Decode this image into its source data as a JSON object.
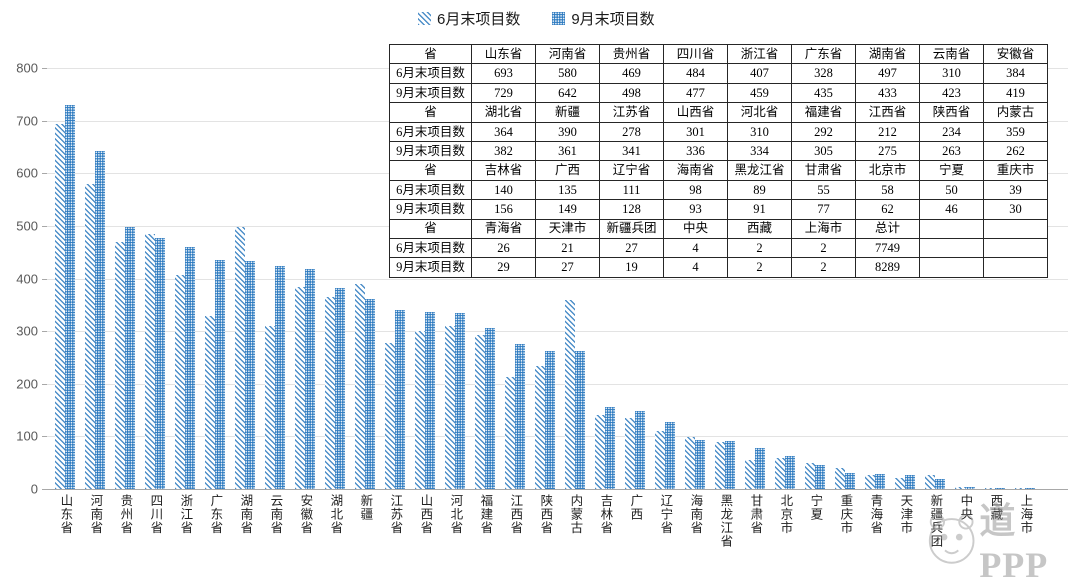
{
  "colors": {
    "bar_blue": "#2E7BC0",
    "hatch_blue": "#4E8FC9",
    "grid": "#E3E3E3",
    "axis": "#A8A8A8",
    "table_border": "#262626",
    "watermark_gray": "#8F8F8F"
  },
  "chart_data": {
    "type": "bar",
    "title": "",
    "xlabel": "",
    "ylabel": "",
    "ylim": [
      0,
      800
    ],
    "yticks": [
      0,
      100,
      200,
      300,
      400,
      500,
      600,
      700,
      800
    ],
    "grid": true,
    "legend_position": "top",
    "categories": [
      "山东省",
      "河南省",
      "贵州省",
      "四川省",
      "浙江省",
      "广东省",
      "湖南省",
      "云南省",
      "安徽省",
      "湖北省",
      "新疆",
      "江苏省",
      "山西省",
      "河北省",
      "福建省",
      "江西省",
      "陕西省",
      "内蒙古",
      "吉林省",
      "广西",
      "辽宁省",
      "海南省",
      "黑龙江省",
      "甘肃省",
      "北京市",
      "宁夏",
      "重庆市",
      "青海省",
      "天津市",
      "新疆兵团",
      "中央",
      "西藏",
      "上海市"
    ],
    "series": [
      {
        "name": "6月末项目数",
        "values": [
          693,
          580,
          469,
          484,
          407,
          328,
          497,
          310,
          384,
          364,
          390,
          278,
          301,
          310,
          292,
          212,
          234,
          359,
          140,
          135,
          111,
          98,
          89,
          55,
          58,
          50,
          39,
          26,
          21,
          27,
          4,
          2,
          2
        ]
      },
      {
        "name": "9月末项目数",
        "values": [
          729,
          642,
          498,
          477,
          459,
          435,
          433,
          423,
          419,
          382,
          361,
          341,
          336,
          334,
          305,
          275,
          263,
          262,
          156,
          149,
          128,
          93,
          91,
          77,
          62,
          46,
          30,
          29,
          27,
          19,
          4,
          2,
          2
        ]
      }
    ],
    "totals": {
      "june": 7749,
      "september": 8289
    }
  },
  "table": {
    "rows": [
      [
        "省",
        "山东省",
        "河南省",
        "贵州省",
        "四川省",
        "浙江省",
        "广东省",
        "湖南省",
        "云南省",
        "安徽省"
      ],
      [
        "6月末项目数",
        "693",
        "580",
        "469",
        "484",
        "407",
        "328",
        "497",
        "310",
        "384"
      ],
      [
        "9月末项目数",
        "729",
        "642",
        "498",
        "477",
        "459",
        "435",
        "433",
        "423",
        "419"
      ],
      [
        "省",
        "湖北省",
        "新疆",
        "江苏省",
        "山西省",
        "河北省",
        "福建省",
        "江西省",
        "陕西省",
        "内蒙古"
      ],
      [
        "6月末项目数",
        "364",
        "390",
        "278",
        "301",
        "310",
        "292",
        "212",
        "234",
        "359"
      ],
      [
        "9月末项目数",
        "382",
        "361",
        "341",
        "336",
        "334",
        "305",
        "275",
        "263",
        "262"
      ],
      [
        "省",
        "吉林省",
        "广西",
        "辽宁省",
        "海南省",
        "黑龙江省",
        "甘肃省",
        "北京市",
        "宁夏",
        "重庆市"
      ],
      [
        "6月末项目数",
        "140",
        "135",
        "111",
        "98",
        "89",
        "55",
        "58",
        "50",
        "39"
      ],
      [
        "9月末项目数",
        "156",
        "149",
        "128",
        "93",
        "91",
        "77",
        "62",
        "46",
        "30"
      ],
      [
        "省",
        "青海省",
        "天津市",
        "新疆兵团",
        "中央",
        "西藏",
        "上海市",
        "总计",
        "",
        ""
      ],
      [
        "6月末项目数",
        "26",
        "21",
        "27",
        "4",
        "2",
        "2",
        "7749",
        "",
        ""
      ],
      [
        "9月末项目数",
        "29",
        "27",
        "19",
        "4",
        "2",
        "2",
        "8289",
        "",
        ""
      ]
    ]
  },
  "watermark": {
    "text": "道PPP"
  }
}
